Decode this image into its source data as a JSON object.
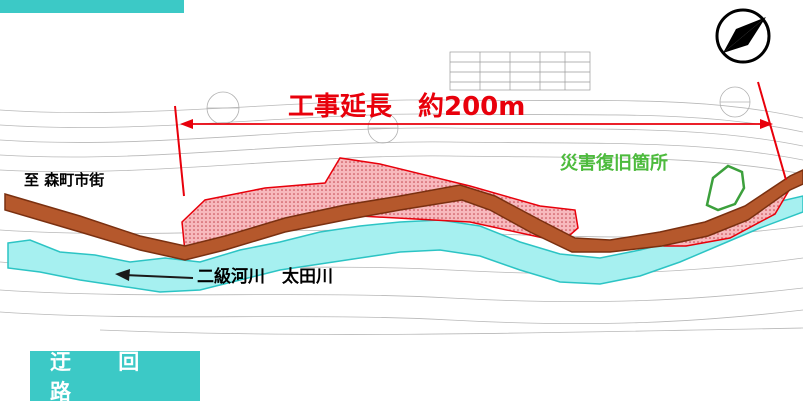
{
  "title": "工事延長　約200m",
  "labels": {
    "destination": "至 森町市街",
    "disaster_site": "災害復旧箇所",
    "river": "二級河川　太田川"
  },
  "detour_label": "迂 回 路",
  "icons": {
    "north_arrow": "north-arrow-icon"
  },
  "colors": {
    "road": "#b5582c",
    "road_outline": "#8a3a16",
    "construction_area": "#f9c0c3",
    "construction_outline": "#e8000b",
    "river": "#a6f0f0",
    "river_outline": "#2cc4c4",
    "disaster": "#4dbb3d",
    "tab": "#3cc9c6",
    "title": "#e8000b"
  }
}
